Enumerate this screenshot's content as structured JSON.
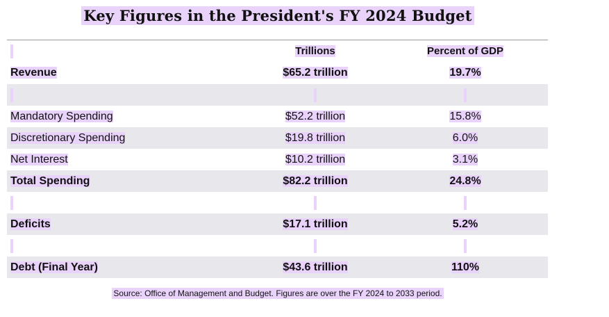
{
  "title": "Key Figures in the President's FY 2024 Budget",
  "headers": {
    "col1": "",
    "col2": "Trillions",
    "col3": "Percent of GDP"
  },
  "rows": [
    {
      "label": "Revenue",
      "amount": "$65.2 trillion",
      "pct": "19.7%",
      "bold": true,
      "shaded": false
    },
    {
      "label": "",
      "amount": "",
      "pct": "",
      "bold": false,
      "shaded": true
    },
    {
      "label": "Mandatory Spending",
      "amount": "$52.2 trillion",
      "pct": "15.8%",
      "bold": false,
      "shaded": false
    },
    {
      "label": "Discretionary Spending",
      "amount": "$19.8 trillion",
      "pct": "6.0%",
      "bold": false,
      "shaded": true
    },
    {
      "label": "Net Interest",
      "amount": "$10.2 trillion",
      "pct": "3.1%",
      "bold": false,
      "shaded": false
    },
    {
      "label": "Total Spending",
      "amount": "$82.2 trillion",
      "pct": "24.8%",
      "bold": true,
      "shaded": true
    },
    {
      "label": "",
      "amount": "",
      "pct": "",
      "bold": false,
      "shaded": false
    },
    {
      "label": "Deficits",
      "amount": "$17.1 trillion",
      "pct": "5.2%",
      "bold": true,
      "shaded": true
    },
    {
      "label": "",
      "amount": "",
      "pct": "",
      "bold": false,
      "shaded": false
    },
    {
      "label": "Debt (Final Year)",
      "amount": "$43.6 trillion",
      "pct": "110%",
      "bold": true,
      "shaded": true
    }
  ],
  "source": "Source: Office of Management and Budget. Figures are over the FY 2024 to 2033 period.",
  "colors": {
    "highlight": "#ead3fb",
    "shade": "#e7e7ec"
  }
}
